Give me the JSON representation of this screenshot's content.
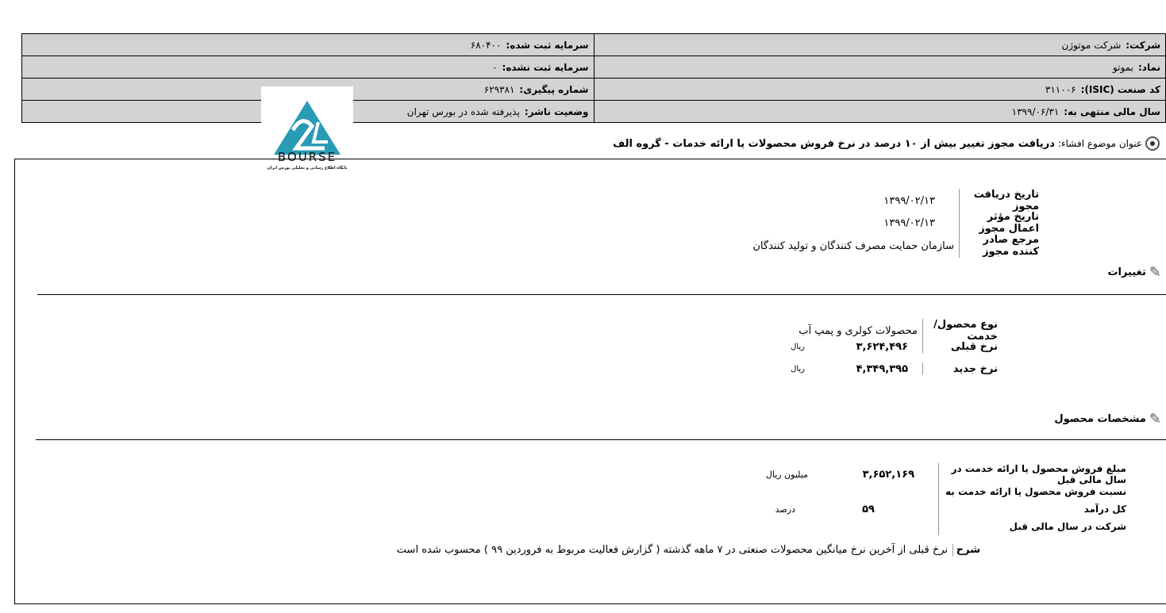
{
  "header": {
    "company_label": "شرکت:",
    "company": "شرکت موتوژن",
    "symbol_label": "نماد:",
    "symbol": "بموتو",
    "isic_label": "کد صنعت (ISIC):",
    "isic": "۳۱۱۰۰۶",
    "fiscal_label": "سال مالی منتهی به:",
    "fiscal": "۱۳۹۹/۰۶/۳۱",
    "reg_capital_label": "سرمایه ثبت شده:",
    "reg_capital": "۶۸۰۴۰۰",
    "unreg_capital_label": "سرمایه ثبت نشده:",
    "unreg_capital": "۰",
    "tracking_label": "شماره پیگیری:",
    "tracking": "۶۲۹۳۸۱",
    "status_label": "وضعیت ناشر:",
    "status": "پذیرفته شده در بورس تهران"
  },
  "logo": {
    "text": "BOURSE",
    "subtitle": "پایگاه اطلاع رسانی و تحلیلی بورس ایران",
    "color": "#2a9bb5"
  },
  "title": {
    "label": "عنوان موضوع افشاء:",
    "text": "دریافت مجوز تغییر بیش از ۱۰ درصد در نرخ فروش محصولات یا ارائه خدمات - گروه الف"
  },
  "permit": {
    "receive_date_label": "تاریخ دریافت مجوز",
    "receive_date": "۱۳۹۹/۰۲/۱۳",
    "effective_date_label": "تاریخ مؤثر اعمال مجوز",
    "effective_date": "۱۳۹۹/۰۲/۱۳",
    "issuer_label": "مرجع صادر کننده مجوز",
    "issuer": "سازمان حمایت مصرف کنندگان و تولید کنندگان"
  },
  "changes": {
    "heading": "تغییرات",
    "product_label": "نوع محصول/خدمت",
    "product": "محصولات کولری و پمپ آب",
    "old_rate_label": "نرخ قبلی",
    "old_rate": "۳,۶۲۴,۴۹۶",
    "old_unit": "ریال",
    "new_rate_label": "نرخ جدید",
    "new_rate": "۴,۳۴۹,۳۹۵",
    "new_unit": "ریال"
  },
  "specs": {
    "heading": "مشخصات محصول",
    "sales_label": "مبلغ فروش محصول یا ارائه خدمت در سال مالی قبل",
    "sales": "۳,۶۵۲,۱۶۹",
    "sales_unit": "میلیون ریال",
    "ratio_label_1": "نسبت فروش محصول یا ارائه خدمت به کل درآمد",
    "ratio_label_2": "شرکت در سال مالی قبل",
    "ratio": "۵۹",
    "ratio_unit": "درصد"
  },
  "description": {
    "label": "شرح",
    "text": "نرخ قبلی از آخرین نرخ میانگین محصولات صنعتی در ۷ ماهه گذشته ( گزارش فعالیت مربوط به فروردین ۹۹ ) محسوب شده است"
  }
}
